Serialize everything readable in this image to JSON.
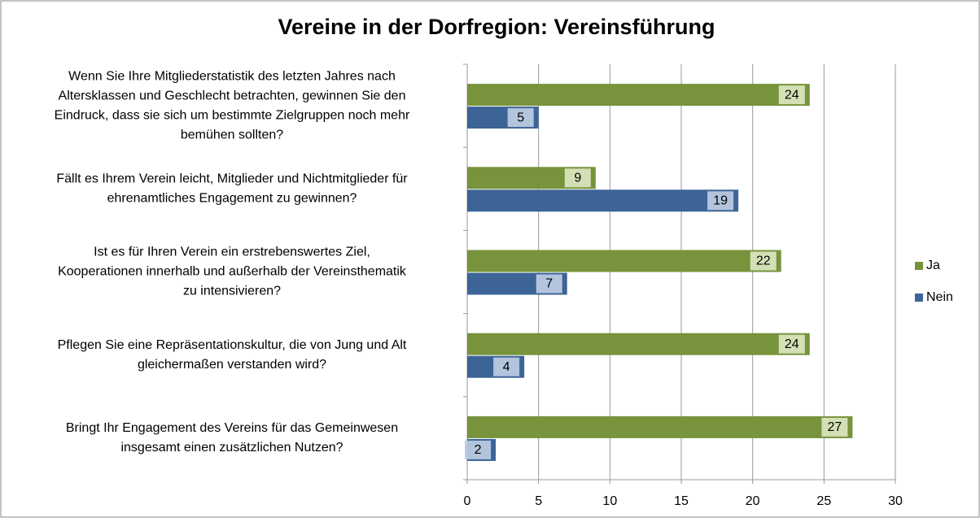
{
  "chart_data": {
    "type": "bar",
    "orientation": "horizontal",
    "title": "Vereine in der Dorfregion: Vereinsführung",
    "categories": [
      [
        "Wenn Sie Ihre Mitgliederstatistik des letzten Jahres nach",
        "Altersklassen und Geschlecht betrachten, gewinnen Sie den",
        "Eindruck, dass sie sich um bestimmte Zielgruppen noch mehr",
        "bemühen sollten?"
      ],
      [
        "Fällt es Ihrem Verein leicht, Mitglieder und Nichtmitglieder für",
        "ehrenamtliches Engagement zu gewinnen?"
      ],
      [
        "Ist es für Ihren Verein ein erstrebenswertes Ziel,",
        "Kooperationen innerhalb und außerhalb der Vereinsthematik",
        "zu intensivieren?"
      ],
      [
        "Pflegen Sie eine Repräsentationskultur, die von Jung und Alt",
        "gleichermaßen verstanden wird?"
      ],
      [
        "Bringt Ihr Engagement des Vereins für das Gemeinwesen",
        "insgesamt einen zusätzlichen Nutzen?"
      ]
    ],
    "series": [
      {
        "name": "Ja",
        "color": "#77933c",
        "values": [
          24,
          9,
          22,
          24,
          27
        ]
      },
      {
        "name": "Nein",
        "color": "#3c6497",
        "values": [
          5,
          19,
          7,
          4,
          2
        ]
      }
    ],
    "xlim": [
      0,
      30
    ],
    "xticks": [
      0,
      5,
      10,
      15,
      20,
      25,
      30
    ],
    "grid": true,
    "legend": "right"
  }
}
